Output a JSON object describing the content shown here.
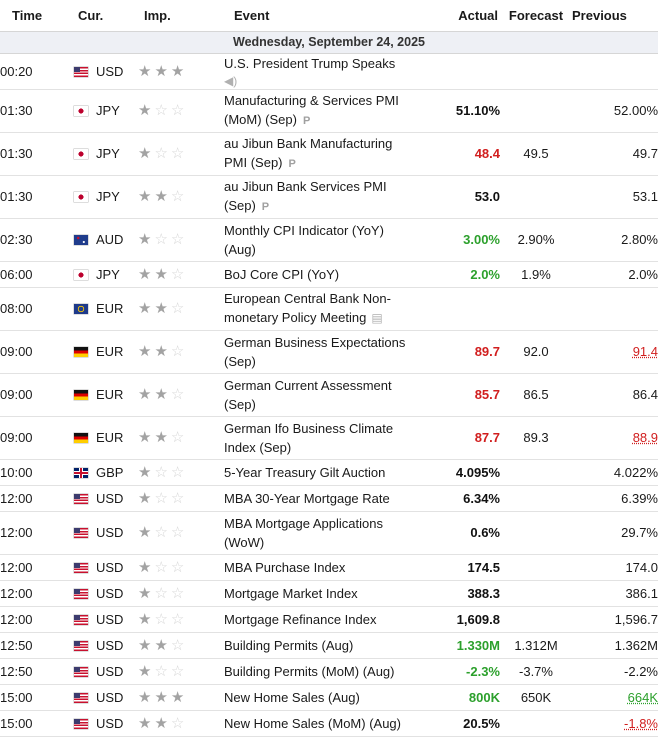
{
  "header": {
    "time": "Time",
    "currency": "Cur.",
    "importance": "Imp.",
    "event": "Event",
    "actual": "Actual",
    "forecast": "Forecast",
    "previous": "Previous"
  },
  "date_label": "Wednesday, September 24, 2025",
  "colors": {
    "negative": "#d11e1e",
    "positive": "#2ca02c",
    "star_on": "#a3a3a3",
    "star_off": "#d6d6d6"
  },
  "events": [
    {
      "time": "00:20",
      "flag": "us",
      "currency": "USD",
      "importance": 3,
      "event": "U.S. President Trump Speaks",
      "icon": "speaker-icon",
      "actual": "",
      "actual_color": "",
      "forecast": "",
      "previous": "",
      "previous_color": ""
    },
    {
      "time": "01:30",
      "flag": "jp",
      "currency": "JPY",
      "importance": 1,
      "event": "Manufacturing & Services PMI (MoM) (Sep)",
      "badge": "P",
      "actual": "51.10%",
      "actual_color": "black",
      "forecast": "",
      "previous": "52.00%",
      "previous_color": ""
    },
    {
      "time": "01:30",
      "flag": "jp",
      "currency": "JPY",
      "importance": 1,
      "event": "au Jibun Bank Manufacturing PMI (Sep)",
      "badge": "P",
      "actual": "48.4",
      "actual_color": "red",
      "forecast": "49.5",
      "previous": "49.7",
      "previous_color": ""
    },
    {
      "time": "01:30",
      "flag": "jp",
      "currency": "JPY",
      "importance": 2,
      "event": "au Jibun Bank Services PMI (Sep)",
      "badge": "P",
      "actual": "53.0",
      "actual_color": "black",
      "forecast": "",
      "previous": "53.1",
      "previous_color": ""
    },
    {
      "time": "02:30",
      "flag": "au",
      "currency": "AUD",
      "importance": 1,
      "event": "Monthly CPI Indicator (YoY) (Aug)",
      "actual": "3.00%",
      "actual_color": "green",
      "forecast": "2.90%",
      "previous": "2.80%",
      "previous_color": ""
    },
    {
      "time": "06:00",
      "flag": "jp",
      "currency": "JPY",
      "importance": 2,
      "event": "BoJ Core CPI (YoY)",
      "actual": "2.0%",
      "actual_color": "green",
      "forecast": "1.9%",
      "previous": "2.0%",
      "previous_color": ""
    },
    {
      "time": "08:00",
      "flag": "eu",
      "currency": "EUR",
      "importance": 2,
      "event": "European Central Bank Non-monetary Policy Meeting",
      "icon": "document-icon",
      "actual": "",
      "actual_color": "",
      "forecast": "",
      "previous": "",
      "previous_color": ""
    },
    {
      "time": "09:00",
      "flag": "de",
      "currency": "EUR",
      "importance": 2,
      "event": "German Business Expectations (Sep)",
      "actual": "89.7",
      "actual_color": "red",
      "forecast": "92.0",
      "previous": "91.4",
      "previous_color": "red"
    },
    {
      "time": "09:00",
      "flag": "de",
      "currency": "EUR",
      "importance": 2,
      "event": "German Current Assessment (Sep)",
      "actual": "85.7",
      "actual_color": "red",
      "forecast": "86.5",
      "previous": "86.4",
      "previous_color": ""
    },
    {
      "time": "09:00",
      "flag": "de",
      "currency": "EUR",
      "importance": 2,
      "event": "German Ifo Business Climate Index (Sep)",
      "actual": "87.7",
      "actual_color": "red",
      "forecast": "89.3",
      "previous": "88.9",
      "previous_color": "red"
    },
    {
      "time": "10:00",
      "flag": "gb",
      "currency": "GBP",
      "importance": 1,
      "event": "5-Year Treasury Gilt Auction",
      "actual": "4.095%",
      "actual_color": "black",
      "forecast": "",
      "previous": "4.022%",
      "previous_color": ""
    },
    {
      "time": "12:00",
      "flag": "us",
      "currency": "USD",
      "importance": 1,
      "event": "MBA 30-Year Mortgage Rate",
      "actual": "6.34%",
      "actual_color": "black",
      "forecast": "",
      "previous": "6.39%",
      "previous_color": ""
    },
    {
      "time": "12:00",
      "flag": "us",
      "currency": "USD",
      "importance": 1,
      "event": "MBA Mortgage Applications (WoW)",
      "actual": "0.6%",
      "actual_color": "black",
      "forecast": "",
      "previous": "29.7%",
      "previous_color": ""
    },
    {
      "time": "12:00",
      "flag": "us",
      "currency": "USD",
      "importance": 1,
      "event": "MBA Purchase Index",
      "actual": "174.5",
      "actual_color": "black",
      "forecast": "",
      "previous": "174.0",
      "previous_color": ""
    },
    {
      "time": "12:00",
      "flag": "us",
      "currency": "USD",
      "importance": 1,
      "event": "Mortgage Market Index",
      "actual": "388.3",
      "actual_color": "black",
      "forecast": "",
      "previous": "386.1",
      "previous_color": ""
    },
    {
      "time": "12:00",
      "flag": "us",
      "currency": "USD",
      "importance": 1,
      "event": "Mortgage Refinance Index",
      "actual": "1,609.8",
      "actual_color": "black",
      "forecast": "",
      "previous": "1,596.7",
      "previous_color": ""
    },
    {
      "time": "12:50",
      "flag": "us",
      "currency": "USD",
      "importance": 2,
      "event": "Building Permits (Aug)",
      "actual": "1.330M",
      "actual_color": "green",
      "forecast": "1.312M",
      "previous": "1.362M",
      "previous_color": ""
    },
    {
      "time": "12:50",
      "flag": "us",
      "currency": "USD",
      "importance": 1,
      "event": "Building Permits (MoM) (Aug)",
      "actual": "-2.3%",
      "actual_color": "green",
      "forecast": "-3.7%",
      "previous": "-2.2%",
      "previous_color": ""
    },
    {
      "time": "15:00",
      "flag": "us",
      "currency": "USD",
      "importance": 3,
      "event": "New Home Sales (Aug)",
      "actual": "800K",
      "actual_color": "green",
      "forecast": "650K",
      "previous": "664K",
      "previous_color": "green"
    },
    {
      "time": "15:00",
      "flag": "us",
      "currency": "USD",
      "importance": 2,
      "event": "New Home Sales (MoM) (Aug)",
      "actual": "20.5%",
      "actual_color": "black",
      "forecast": "",
      "previous": "-1.8%",
      "previous_color": "red"
    }
  ]
}
